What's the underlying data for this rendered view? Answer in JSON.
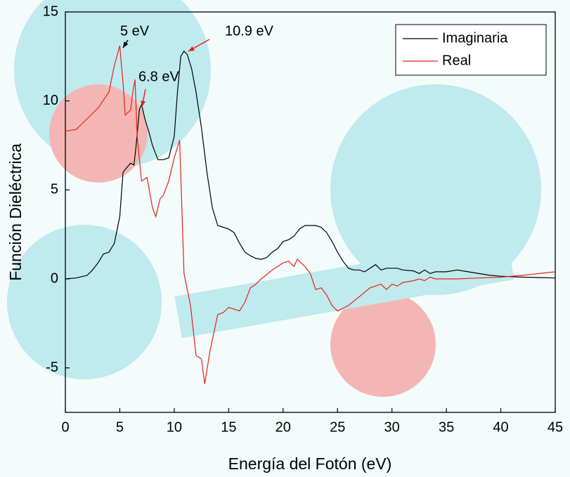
{
  "chart_data": {
    "type": "line",
    "xlabel": "Energía del Fotón (eV)",
    "ylabel": "Función Dieléctrica",
    "xlim": [
      0,
      45
    ],
    "xticks": [
      0,
      5,
      10,
      15,
      20,
      25,
      30,
      35,
      40,
      45
    ],
    "ylim": [
      -7.5,
      15
    ],
    "yticks": [
      -5,
      0,
      5,
      10,
      15
    ],
    "grid": false,
    "legend": "upper right",
    "annotations": [
      "5 eV",
      "6.8 eV",
      "10.9 eV"
    ],
    "series": [
      {
        "name": "Imaginaria",
        "color": "#000000",
        "x": [
          0,
          1,
          2,
          2.5,
          3,
          3.5,
          4,
          4.5,
          5,
          5.3,
          5.7,
          6,
          6.3,
          6.5,
          6.8,
          7,
          7.3,
          7.7,
          8,
          8.5,
          9,
          9.5,
          10,
          10.3,
          10.6,
          10.9,
          11.2,
          11.6,
          12,
          12.5,
          13,
          13.5,
          14,
          14.5,
          15,
          15.5,
          16,
          16.5,
          17,
          17.5,
          18,
          18.5,
          19,
          19.5,
          20,
          20.5,
          21,
          21.5,
          22,
          22.5,
          23,
          23.5,
          24,
          24.5,
          25,
          25.5,
          26,
          26.5,
          27,
          27.5,
          28,
          28.5,
          29,
          29.5,
          30,
          30.5,
          31,
          32,
          32.5,
          33,
          33.5,
          34,
          35,
          36,
          37,
          38,
          39,
          40,
          42,
          45
        ],
        "values": [
          0,
          0.05,
          0.2,
          0.5,
          0.9,
          1.4,
          1.5,
          2.0,
          3.5,
          6.0,
          6.3,
          6.5,
          6.4,
          7.5,
          9.5,
          9.8,
          9.0,
          8.2,
          7.5,
          6.7,
          6.7,
          6.8,
          8.0,
          10.5,
          12.5,
          12.8,
          12.6,
          11.8,
          10.5,
          8.5,
          6.0,
          4.0,
          3.0,
          2.9,
          2.8,
          2.6,
          2.0,
          1.5,
          1.3,
          1.15,
          1.1,
          1.2,
          1.5,
          1.7,
          2.1,
          2.2,
          2.4,
          2.8,
          3.0,
          3.0,
          3.0,
          2.9,
          2.6,
          2.1,
          1.5,
          1.0,
          0.6,
          0.5,
          0.5,
          0.4,
          0.6,
          0.8,
          0.5,
          0.6,
          0.6,
          0.6,
          0.5,
          0.45,
          0.3,
          0.5,
          0.3,
          0.4,
          0.4,
          0.5,
          0.4,
          0.3,
          0.2,
          0.15,
          0.1,
          0.05
        ]
      },
      {
        "name": "Real",
        "color": "#e8211c",
        "x": [
          0,
          1,
          2,
          3,
          4,
          4.5,
          5,
          5.3,
          5.5,
          6,
          6.2,
          6.4,
          6.6,
          7,
          7.5,
          8,
          8.3,
          8.7,
          9,
          9.5,
          10,
          10.5,
          10.9,
          11.5,
          12,
          12.5,
          12.8,
          13.3,
          14,
          14.5,
          15,
          16,
          16.5,
          17,
          17.5,
          18,
          19,
          20,
          20.5,
          21,
          21.3,
          22,
          22.5,
          23,
          23.5,
          24,
          24.5,
          25,
          26,
          27,
          28,
          29,
          29.5,
          30,
          30.5,
          31,
          32,
          32.5,
          33,
          33.5,
          34,
          35,
          36,
          38,
          40,
          42,
          45
        ],
        "values": [
          8.3,
          8.4,
          9.0,
          9.6,
          10.5,
          12.0,
          13.1,
          11.0,
          9.2,
          9.5,
          10.5,
          11.2,
          8.0,
          5.5,
          5.7,
          4.0,
          3.5,
          4.5,
          4.7,
          5.5,
          6.8,
          7.8,
          0.3,
          -1.5,
          -4.3,
          -4.5,
          -5.9,
          -4.0,
          -2.0,
          -1.9,
          -1.6,
          -1.8,
          -1.3,
          -0.5,
          -0.3,
          0,
          0.5,
          0.9,
          1.0,
          0.7,
          1.1,
          0.7,
          0.3,
          -0.6,
          -0.5,
          -0.9,
          -1.5,
          -1.8,
          -1.5,
          -1.0,
          -0.5,
          -0.3,
          -0.6,
          -0.3,
          -0.4,
          -0.2,
          -0.1,
          0.0,
          -0.1,
          0.1,
          0.0,
          0.0,
          0.0,
          0.05,
          0.1,
          0.2,
          0.4
        ]
      }
    ]
  }
}
